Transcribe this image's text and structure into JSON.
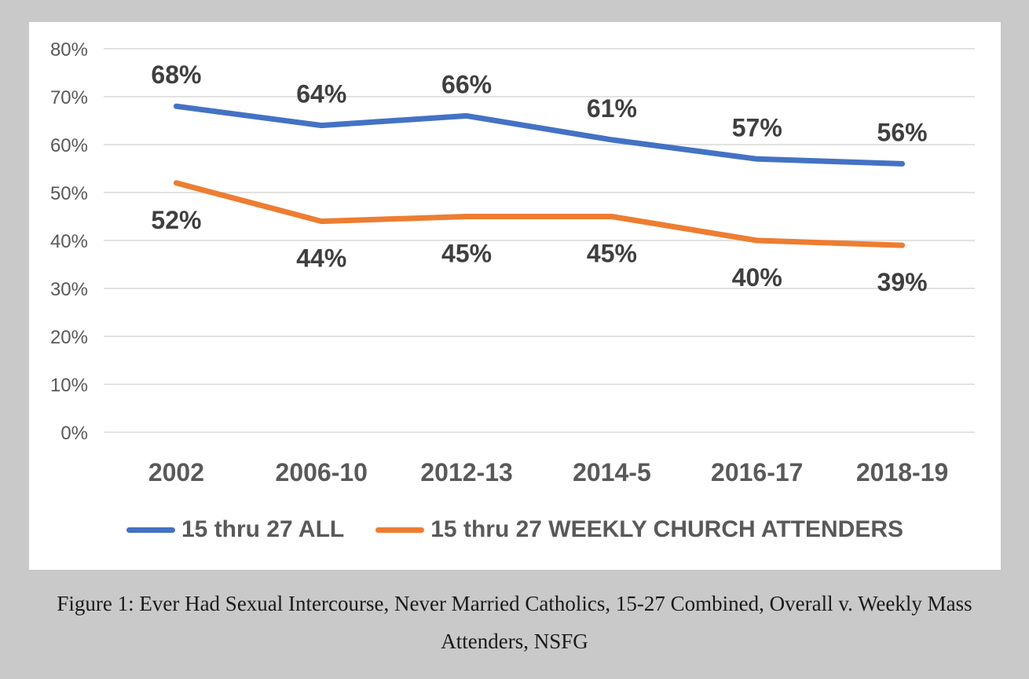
{
  "chart_data": {
    "type": "line",
    "categories": [
      "2002",
      "2006-10",
      "2012-13",
      "2014-5",
      "2016-17",
      "2018-19"
    ],
    "series": [
      {
        "name": "15 thru 27 ALL",
        "color": "#4472C4",
        "values": [
          68,
          64,
          66,
          61,
          57,
          56
        ],
        "label_position": "above"
      },
      {
        "name": "15 thru 27 WEEKLY CHURCH ATTENDERS",
        "color": "#ED7D31",
        "values": [
          52,
          44,
          45,
          45,
          40,
          39
        ],
        "label_position": "below"
      }
    ],
    "y_ticks": [
      "0%",
      "10%",
      "20%",
      "30%",
      "40%",
      "50%",
      "60%",
      "70%",
      "80%"
    ],
    "ylim": [
      0,
      80
    ],
    "grid": true,
    "legend_position": "bottom",
    "data_label_suffix": "%",
    "title": "",
    "xlabel": "",
    "ylabel": ""
  },
  "caption": {
    "lines": [
      "Figure 1: Ever Had Sexual Intercourse, Never Married Catholics, 15-27 Combined, Overall v. Weekly Mass",
      "Attenders, NSFG"
    ]
  },
  "colors": {
    "page_background": "#c9c9c9",
    "chart_background": "#ffffff",
    "gridline": "#d9d9d9",
    "axis_label": "#595959",
    "data_label": "#3f3f3f",
    "series_blue": "#4472C4",
    "series_orange": "#ED7D31",
    "caption_text": "#1a1a1a"
  }
}
